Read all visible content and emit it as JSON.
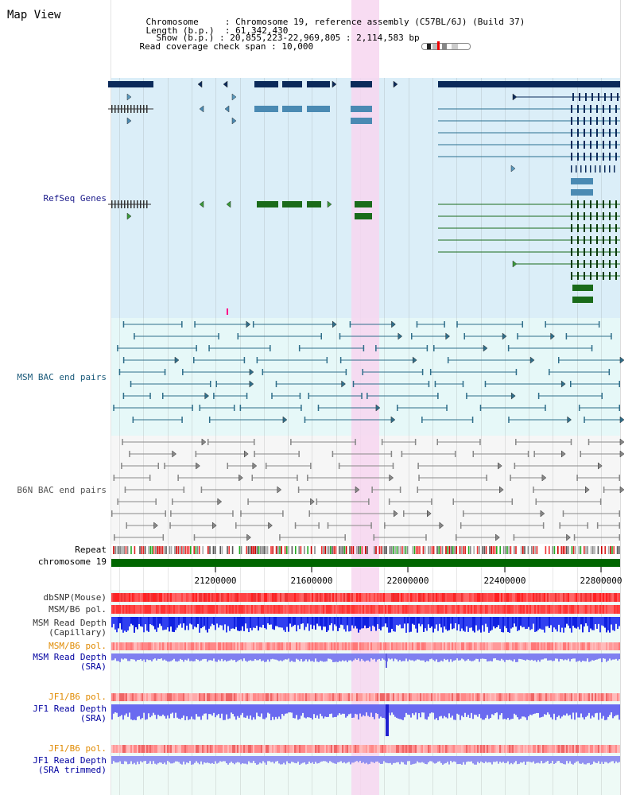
{
  "page_title": "Map View",
  "header": {
    "chromosome_key": "Chromosome",
    "chromosome_val": "Chromosome 19, reference assembly (C57BL/6J) (Build 37)",
    "length_key": "Length (b.p.)",
    "length_val": "61,342,430",
    "show_key": "Show (b.p.)",
    "show_val": "20,855,223-22,969,805 : 2,114,583 bp",
    "coverage_key": "Read coverage check span",
    "coverage_val": "10,000"
  },
  "tracks": {
    "refseq": "RefSeq Genes",
    "msm_bac": "MSM BAC end pairs",
    "b6n_bac": "B6N BAC end pairs",
    "repeat": "Repeat",
    "chromosome": "chromosome 19",
    "dbsnp": "dbSNP(Mouse)",
    "msm_b6_pol_1": "MSM/B6 pol.",
    "msm_depth_cap_1": "MSM Read Depth",
    "msm_depth_cap_2": "(Capillary)",
    "msm_b6_pol_2": "MSM/B6 pol.",
    "msm_depth_sra_1": "MSM Read Depth",
    "msm_depth_sra_2": "(SRA)",
    "jf1_b6_pol_1": "JF1/B6 pol.",
    "jf1_depth_sra_1": "JF1 Read Depth",
    "jf1_depth_sra_2": "(SRA)",
    "jf1_b6_pol_2": "JF1/B6 pol.",
    "jf1_depth_trim_1": "JF1 Read Depth",
    "jf1_depth_trim_2": "(SRA trimmed)"
  },
  "axis": {
    "ticks": [
      "21200000",
      "21600000",
      "22000000",
      "22400000",
      "22800000"
    ]
  },
  "colors": {
    "refseq_bg": "#dbeef8",
    "msm_bg": "#e6f8f8",
    "b6n_bg": "#f4f4f4",
    "highlight": "#f7d6f0",
    "gene_dark": "#0b2a5a",
    "gene_mid": "#4a8ab3",
    "gene_green": "#1a6b1a",
    "msm_line": "#2f6e8a",
    "b6n_line": "#888888",
    "chrom_green": "#006600",
    "msm_label": "#1a5a7a",
    "refseq_label": "#1a1a8a",
    "pol_label": "#e08a00",
    "depth_label": "#0000a0"
  }
}
